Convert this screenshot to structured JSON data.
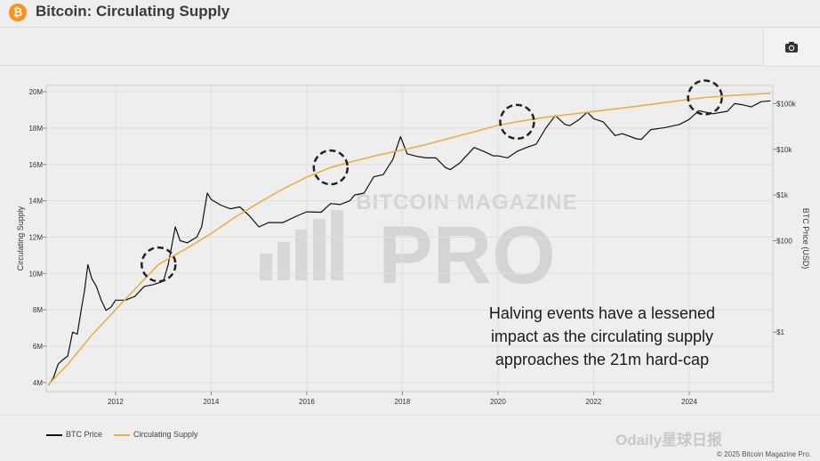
{
  "header": {
    "logo_glyph": "₿",
    "title": "Bitcoin: Circulating Supply",
    "camera_icon": "camera-icon"
  },
  "chart_data": {
    "type": "line",
    "xlim": [
      2010.55,
      2025.75
    ],
    "x_ticks": [
      {
        "value": 2012,
        "label": "2012"
      },
      {
        "value": 2014,
        "label": "2014"
      },
      {
        "value": 2016,
        "label": "2016"
      },
      {
        "value": 2018,
        "label": "2018"
      },
      {
        "value": 2020,
        "label": "2020"
      },
      {
        "value": 2022,
        "label": "2022"
      },
      {
        "value": 2024,
        "label": "2024"
      }
    ],
    "y_left": {
      "label": "Circulating Supply",
      "lim": [
        3500000,
        20350000
      ],
      "ticks": [
        {
          "value": 4000000,
          "label": "4M"
        },
        {
          "value": 6000000,
          "label": "6M"
        },
        {
          "value": 8000000,
          "label": "8M"
        },
        {
          "value": 10000000,
          "label": "10M"
        },
        {
          "value": 12000000,
          "label": "12M"
        },
        {
          "value": 14000000,
          "label": "14M"
        },
        {
          "value": 16000000,
          "label": "16M"
        },
        {
          "value": 18000000,
          "label": "18M"
        },
        {
          "value": 20000000,
          "label": "20M"
        }
      ]
    },
    "y_right": {
      "label": "BTC Price (USD)",
      "scale": "log",
      "lim": [
        0.05,
        250000
      ],
      "ticks": [
        {
          "value": 1,
          "label": "$1"
        },
        {
          "value": 100,
          "label": "$100"
        },
        {
          "value": 1000,
          "label": "$1k"
        },
        {
          "value": 10000,
          "label": "$10k"
        },
        {
          "value": 100000,
          "label": "$100k"
        }
      ]
    },
    "grid": true,
    "series": [
      {
        "name": "BTC Price",
        "color": "#111111",
        "axis": "right",
        "x": [
          2010.6,
          2010.7,
          2010.8,
          2010.9,
          2011.0,
          2011.1,
          2011.2,
          2011.3,
          2011.35,
          2011.42,
          2011.5,
          2011.6,
          2011.7,
          2011.8,
          2011.9,
          2012.0,
          2012.2,
          2012.4,
          2012.6,
          2012.8,
          2013.0,
          2013.1,
          2013.25,
          2013.35,
          2013.5,
          2013.7,
          2013.8,
          2013.92,
          2014.0,
          2014.2,
          2014.4,
          2014.6,
          2014.8,
          2015.0,
          2015.2,
          2015.5,
          2015.8,
          2016.0,
          2016.3,
          2016.5,
          2016.7,
          2016.9,
          2017.0,
          2017.2,
          2017.4,
          2017.6,
          2017.8,
          2017.96,
          2018.1,
          2018.3,
          2018.5,
          2018.7,
          2018.9,
          2019.0,
          2019.2,
          2019.5,
          2019.7,
          2019.9,
          2020.0,
          2020.2,
          2020.4,
          2020.6,
          2020.8,
          2021.0,
          2021.2,
          2021.4,
          2021.5,
          2021.7,
          2021.87,
          2022.0,
          2022.2,
          2022.45,
          2022.6,
          2022.9,
          2023.0,
          2023.2,
          2023.5,
          2023.8,
          2024.0,
          2024.2,
          2024.5,
          2024.8,
          2024.95,
          2025.1,
          2025.3,
          2025.5,
          2025.7
        ],
        "y": [
          0.07,
          0.1,
          0.2,
          0.25,
          0.3,
          1,
          0.9,
          4,
          8,
          30,
          15,
          10,
          5,
          3,
          3.5,
          5,
          5,
          6,
          10,
          11,
          13,
          30,
          200,
          100,
          90,
          120,
          200,
          1100,
          800,
          600,
          500,
          550,
          350,
          200,
          250,
          250,
          350,
          430,
          420,
          650,
          620,
          750,
          1000,
          1100,
          2500,
          2800,
          6000,
          19000,
          8000,
          7000,
          6500,
          6500,
          4000,
          3600,
          5000,
          11000,
          9000,
          7200,
          7200,
          6500,
          9000,
          11000,
          13000,
          29000,
          55000,
          35000,
          33000,
          45000,
          65000,
          47000,
          40000,
          20000,
          22000,
          17000,
          16500,
          27000,
          30000,
          35000,
          45000,
          70000,
          60000,
          68000,
          100000,
          95000,
          85000,
          110000,
          115000
        ]
      },
      {
        "name": "Circulating Supply",
        "color": "#e8b04b",
        "axis": "left",
        "x": [
          2010.6,
          2011.0,
          2011.5,
          2012.0,
          2012.5,
          2012.9,
          2013.5,
          2014.0,
          2014.5,
          2015.0,
          2015.5,
          2016.0,
          2016.5,
          2017.0,
          2017.5,
          2018.0,
          2018.5,
          2019.0,
          2019.5,
          2020.0,
          2020.4,
          2021.0,
          2021.5,
          2022.0,
          2022.5,
          2023.0,
          2023.5,
          2024.0,
          2024.33,
          2024.8,
          2025.3,
          2025.7
        ],
        "y": [
          3900000,
          5000000,
          6600000,
          8000000,
          9400000,
          10500000,
          11400000,
          12200000,
          13100000,
          13900000,
          14650000,
          15300000,
          15840000,
          16190000,
          16520000,
          16800000,
          17100000,
          17450000,
          17800000,
          18150000,
          18350000,
          18600000,
          18760000,
          18920000,
          19070000,
          19240000,
          19410000,
          19580000,
          19690000,
          19780000,
          19860000,
          19920000
        ]
      }
    ],
    "highlights": [
      {
        "x": 2012.9,
        "series": "Circulating Supply",
        "style": "dashed-circle"
      },
      {
        "x": 2016.5,
        "series": "Circulating Supply",
        "style": "dashed-circle"
      },
      {
        "x": 2020.4,
        "series": "Circulating Supply",
        "style": "dashed-circle"
      },
      {
        "x": 2024.33,
        "series": "Circulating Supply",
        "style": "dashed-circle"
      }
    ],
    "annotation": {
      "lines": [
        "Halving events have a lessened",
        "impact as the circulating supply",
        "approaches the 21m hard-cap"
      ]
    },
    "watermark": {
      "line1": "BITCOIN MAGAZINE",
      "line2": "PRO"
    },
    "legend": {
      "position": "bottom-left"
    }
  },
  "footer": {
    "legend_items": [
      {
        "label": "BTC Price",
        "color": "#111111"
      },
      {
        "label": "Circulating Supply",
        "color": "#e8b04b"
      }
    ],
    "copyright": "© 2025 Bitcoin Magazine Pro.",
    "brand_watermark": "Odaily星球日报"
  }
}
